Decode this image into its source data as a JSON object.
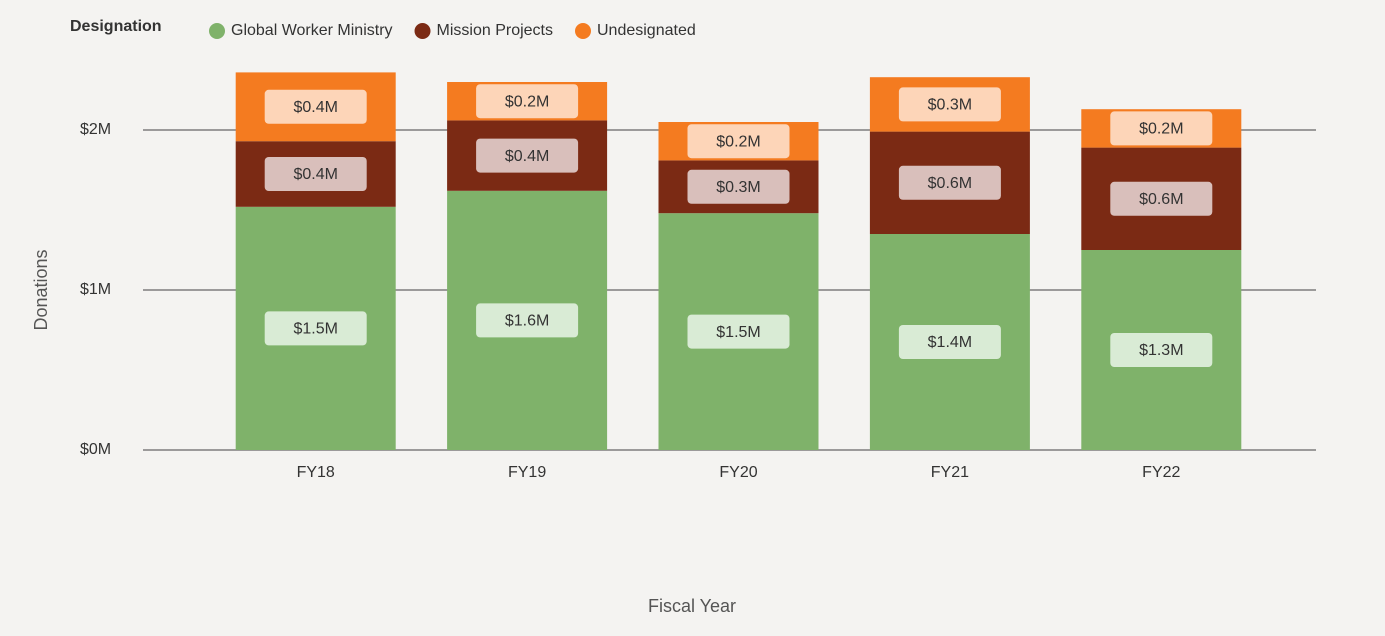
{
  "chart_data": {
    "type": "stacked-bar",
    "legend_title": "Designation",
    "x_label": "Fiscal Year",
    "y_label": "Donations",
    "categories": [
      "FY18",
      "FY19",
      "FY20",
      "FY21",
      "FY22"
    ],
    "series": [
      {
        "name": "Global Worker Ministry",
        "color": "#7fb26a",
        "label_color": "#d9ebd5",
        "values": [
          1.52,
          1.62,
          1.48,
          1.35,
          1.25
        ],
        "value_labels": [
          "$1.5M",
          "$1.6M",
          "$1.5M",
          "$1.4M",
          "$1.3M"
        ]
      },
      {
        "name": "Mission Projects",
        "color": "#7b2a14",
        "label_color": "#d9bfbb",
        "values": [
          0.41,
          0.44,
          0.33,
          0.64,
          0.64
        ],
        "value_labels": [
          "$0.4M",
          "$0.4M",
          "$0.3M",
          "$0.6M",
          "$0.6M"
        ]
      },
      {
        "name": "Undesignated",
        "color": "#f47b20",
        "label_color": "#fdd5b8",
        "values": [
          0.43,
          0.24,
          0.24,
          0.34,
          0.24
        ],
        "value_labels": [
          "$0.4M",
          "$0.2M",
          "$0.2M",
          "$0.3M",
          "$0.2M"
        ]
      }
    ],
    "ylim": [
      0,
      2.5
    ],
    "yticks": [
      {
        "value": 0,
        "label": "$0M"
      },
      {
        "value": 1,
        "label": "$1M"
      },
      {
        "value": 2,
        "label": "$2M"
      }
    ],
    "grid": true
  }
}
